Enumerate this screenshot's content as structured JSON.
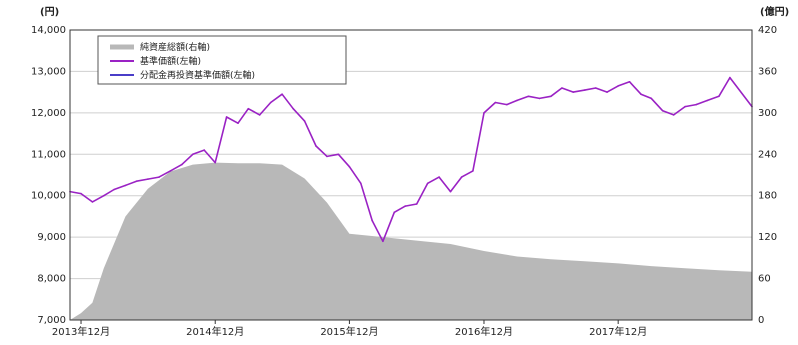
{
  "chart_data": {
    "type": "line",
    "title": "",
    "left_axis": {
      "unit": "(円)",
      "ylim": [
        7000,
        14000
      ],
      "ticks": [
        "14,000",
        "13,000",
        "12,000",
        "11,000",
        "10,000",
        "9,000",
        "8,000",
        "7,000"
      ]
    },
    "right_axis": {
      "unit": "(億円)",
      "ylim": [
        0,
        420
      ],
      "ticks": [
        "420",
        "360",
        "300",
        "240",
        "180",
        "120",
        "60",
        "0"
      ]
    },
    "x_axis": {
      "range": [
        "2013-11-01",
        "2018-11-30"
      ],
      "ticks": [
        {
          "date": "2013-12-01",
          "label": "2013年12月"
        },
        {
          "date": "2014-12-01",
          "label": "2014年12月"
        },
        {
          "date": "2015-12-01",
          "label": "2015年12月"
        },
        {
          "date": "2016-12-01",
          "label": "2016年12月"
        },
        {
          "date": "2017-12-01",
          "label": "2017年12月"
        }
      ]
    },
    "grid": true,
    "legend": {
      "placement": "top-left"
    },
    "series": [
      {
        "name": "純資産総額(右軸)",
        "type": "area",
        "axis": "right",
        "color": "#b8b8b8",
        "x": [
          "2013-11-01",
          "2013-12-01",
          "2014-01-01",
          "2014-02-01",
          "2014-04-01",
          "2014-06-01",
          "2014-08-01",
          "2014-10-01",
          "2014-12-01",
          "2015-02-01",
          "2015-04-01",
          "2015-06-01",
          "2015-08-01",
          "2015-10-01",
          "2015-12-01",
          "2016-03-01",
          "2016-06-01",
          "2016-09-01",
          "2016-12-01",
          "2017-03-01",
          "2017-06-01",
          "2017-09-01",
          "2017-12-01",
          "2018-03-01",
          "2018-06-01",
          "2018-09-01",
          "2018-11-30"
        ],
        "y": [
          0,
          10,
          25,
          75,
          150,
          190,
          215,
          225,
          228,
          227,
          227,
          225,
          205,
          170,
          125,
          120,
          115,
          110,
          100,
          92,
          88,
          85,
          82,
          78,
          75,
          72,
          70
        ]
      },
      {
        "name": "基準価額(左軸)",
        "type": "line",
        "axis": "left",
        "color": "#9a22c4",
        "x": [
          "2013-11-01",
          "2013-12-01",
          "2014-01-01",
          "2014-02-01",
          "2014-03-01",
          "2014-04-01",
          "2014-05-01",
          "2014-06-01",
          "2014-07-01",
          "2014-08-01",
          "2014-09-01",
          "2014-10-01",
          "2014-11-01",
          "2014-12-01",
          "2015-01-01",
          "2015-02-01",
          "2015-03-01",
          "2015-04-01",
          "2015-05-01",
          "2015-06-01",
          "2015-07-01",
          "2015-08-01",
          "2015-09-01",
          "2015-10-01",
          "2015-11-01",
          "2015-12-01",
          "2016-01-01",
          "2016-02-01",
          "2016-03-01",
          "2016-04-01",
          "2016-05-01",
          "2016-06-01",
          "2016-07-01",
          "2016-08-01",
          "2016-09-01",
          "2016-10-01",
          "2016-11-01",
          "2016-12-01",
          "2017-01-01",
          "2017-02-01",
          "2017-03-01",
          "2017-04-01",
          "2017-05-01",
          "2017-06-01",
          "2017-07-01",
          "2017-08-01",
          "2017-09-01",
          "2017-10-01",
          "2017-11-01",
          "2017-12-01",
          "2018-01-01",
          "2018-02-01",
          "2018-03-01",
          "2018-04-01",
          "2018-05-01",
          "2018-06-01",
          "2018-07-01",
          "2018-08-01",
          "2018-09-01",
          "2018-10-01",
          "2018-11-30"
        ],
        "y": [
          10100,
          10050,
          9850,
          10000,
          10150,
          10250,
          10350,
          10400,
          10450,
          10600,
          10750,
          11000,
          11100,
          10800,
          11900,
          11750,
          12100,
          11950,
          12250,
          12450,
          12100,
          11800,
          11200,
          10950,
          11000,
          10700,
          10300,
          9400,
          8900,
          9600,
          9750,
          9800,
          10300,
          10450,
          10100,
          10450,
          10600,
          12000,
          12250,
          12200,
          12300,
          12400,
          12350,
          12400,
          12600,
          12500,
          12550,
          12600,
          12500,
          12650,
          12750,
          12450,
          12350,
          12050,
          11950,
          12150,
          12200,
          12300,
          12400,
          12850,
          12150
        ]
      }
    ],
    "legend_entries": [
      "純資産総額(右軸)",
      "基準価額(左軸)",
      "分配金再投資基準価額(左軸)"
    ]
  }
}
